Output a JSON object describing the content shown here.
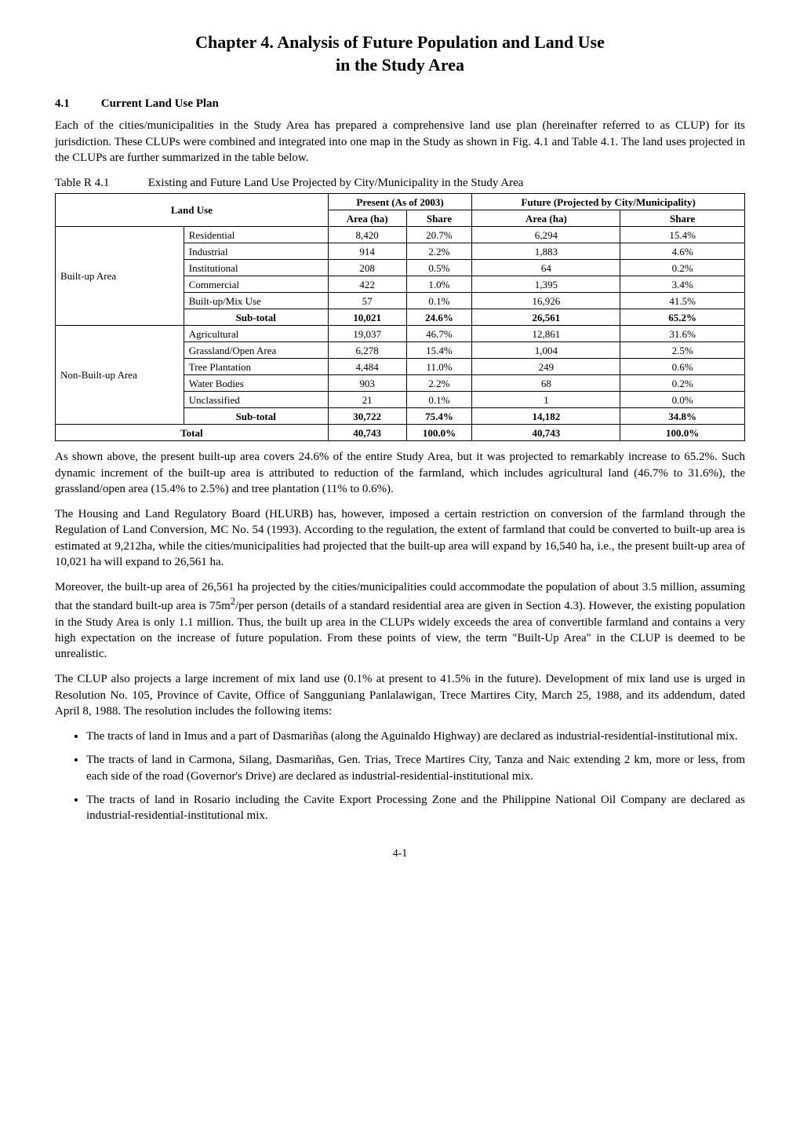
{
  "chapter": {
    "title_line1": "Chapter 4.    Analysis of Future Population and Land Use",
    "title_line2": "in the Study Area"
  },
  "section_4_1": {
    "number": "4.1",
    "title": "Current Land Use Plan",
    "para1": "Each of the cities/municipalities in the Study Area has prepared a comprehensive land use plan (hereinafter referred to as CLUP) for its jurisdiction. These CLUPs were combined and integrated into one map in the Study as shown in Fig. 4.1 and Table 4.1.   The land uses projected in the CLUPs are further summarized in the table below."
  },
  "table": {
    "caption_num": "Table R 4.1",
    "caption_text": "Existing and Future Land Use Projected by City/Municipality in the Study Area",
    "head": {
      "land_use": "Land Use",
      "present": "Present (As of 2003)",
      "future": "Future (Projected by City/Municipality)",
      "area": "Area  (ha)",
      "share": "Share"
    },
    "groups": [
      {
        "group": "Built-up Area",
        "rows": [
          {
            "cat": "Residential",
            "p_area": "8,420",
            "p_share": "20.7%",
            "f_area": "6,294",
            "f_share": "15.4%"
          },
          {
            "cat": "Industrial",
            "p_area": "914",
            "p_share": "2.2%",
            "f_area": "1,883",
            "f_share": "4.6%"
          },
          {
            "cat": "Institutional",
            "p_area": "208",
            "p_share": "0.5%",
            "f_area": "64",
            "f_share": "0.2%"
          },
          {
            "cat": "Commercial",
            "p_area": "422",
            "p_share": "1.0%",
            "f_area": "1,395",
            "f_share": "3.4%"
          },
          {
            "cat": "Built-up/Mix Use",
            "p_area": "57",
            "p_share": "0.1%",
            "f_area": "16,926",
            "f_share": "41.5%"
          }
        ],
        "subtotal": {
          "label": "Sub-total",
          "p_area": "10,021",
          "p_share": "24.6%",
          "f_area": "26,561",
          "f_share": "65.2%"
        }
      },
      {
        "group": "Non-Built-up Area",
        "rows": [
          {
            "cat": "Agricultural",
            "p_area": "19,037",
            "p_share": "46.7%",
            "f_area": "12,861",
            "f_share": "31.6%"
          },
          {
            "cat": "Grassland/Open Area",
            "p_area": "6,278",
            "p_share": "15.4%",
            "f_area": "1,004",
            "f_share": "2.5%"
          },
          {
            "cat": "Tree Plantation",
            "p_area": "4,484",
            "p_share": "11.0%",
            "f_area": "249",
            "f_share": "0.6%"
          },
          {
            "cat": "Water Bodies",
            "p_area": "903",
            "p_share": "2.2%",
            "f_area": "68",
            "f_share": "0.2%"
          },
          {
            "cat": "Unclassified",
            "p_area": "21",
            "p_share": "0.1%",
            "f_area": "1",
            "f_share": "0.0%"
          }
        ],
        "subtotal": {
          "label": "Sub-total",
          "p_area": "30,722",
          "p_share": "75.4%",
          "f_area": "14,182",
          "f_share": "34.8%"
        }
      }
    ],
    "total": {
      "label": "Total",
      "p_area": "40,743",
      "p_share": "100.0%",
      "f_area": "40,743",
      "f_share": "100.0%"
    }
  },
  "body": {
    "para2": "As shown above, the present built-up area covers 24.6% of the entire Study Area, but it was projected to remarkably increase to 65.2%. Such dynamic increment of the built-up area is attributed to reduction of the farmland, which includes agricultural land (46.7% to 31.6%), the grassland/open area (15.4% to 2.5%) and tree plantation (11% to 0.6%).",
    "para3": "The Housing and Land Regulatory Board (HLURB) has, however, imposed a certain restriction on conversion of the farmland through the Regulation of Land Conversion, MC No. 54 (1993). According to the regulation, the extent of farmland that could be converted to built-up area is estimated at 9,212ha, while the cities/municipalities had projected that the built-up area will expand by 16,540 ha, i.e., the present built-up area of 10,021 ha will expand to 26,561 ha.",
    "para4_a": "Moreover, the built-up area of 26,561 ha projected by the cities/municipalities could accommodate the population of about 3.5 million, assuming that the standard built-up area is 75m",
    "para4_b": "/per person (details of a standard residential area are given in Section 4.3). However, the existing population in the Study Area is only 1.1 million. Thus, the built up area in the CLUPs widely exceeds the area of convertible farmland and contains a very high expectation on the increase of future population. From these points of view, the term \"Built-Up Area\" in the CLUP is deemed to be unrealistic.",
    "para5": "The CLUP also projects a large increment of mix land use (0.1% at present to 41.5% in the future). Development of mix land use is urged in Resolution No. 105, Province of Cavite, Office of Sangguniang Panlalawigan, Trece Martires City, March 25, 1988, and its addendum, dated April 8, 1988. The resolution includes the following items:",
    "bullets": [
      "The tracts of land in Imus and a part of Dasmariñas (along the Aguinaldo Highway) are declared as industrial-residential-institutional mix.",
      "The tracts of land in Carmona, Silang, Dasmariñas, Gen. Trias, Trece Martires City, Tanza and Naic extending 2 km, more or less, from each side of the road (Governor's Drive) are declared as industrial-residential-institutional mix.",
      "The tracts of land in Rosario including the Cavite Export Processing Zone and the Philippine National Oil Company are declared as industrial-residential-institutional mix."
    ]
  },
  "page_number": "4-1"
}
